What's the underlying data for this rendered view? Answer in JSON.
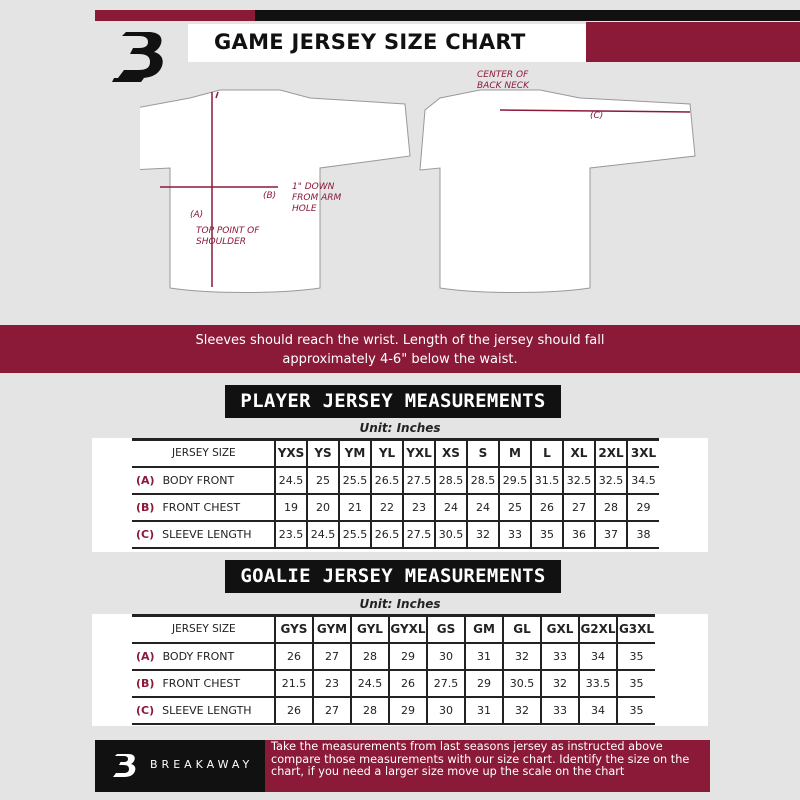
{
  "header": {
    "title": "GAME JERSEY SIZE CHART",
    "logo": "B"
  },
  "diagram": {
    "center_back_neck": "CENTER OF BACK NECK",
    "c_label": "(C)",
    "b_label": "(B)",
    "a_label": "(A)",
    "one_inch_down": "1\" DOWN FROM ARM HOLE",
    "top_point": "TOP POINT OF SHOULDER"
  },
  "banner": {
    "line1": "Sleeves should reach the wrist. Length of the jersey should fall",
    "line2": "approximately 4-6\" below the waist."
  },
  "player": {
    "title": "PLAYER JERSEY MEASUREMENTS",
    "unit": "Unit: Inches",
    "size_label": "JERSEY SIZE",
    "sizes": [
      "YXS",
      "YS",
      "YM",
      "YL",
      "YXL",
      "XS",
      "S",
      "M",
      "L",
      "XL",
      "2XL",
      "3XL"
    ],
    "rows": [
      {
        "id": "(A)",
        "name": "BODY FRONT",
        "values": [
          "24.5",
          "25",
          "25.5",
          "26.5",
          "27.5",
          "28.5",
          "28.5",
          "29.5",
          "31.5",
          "32.5",
          "32.5",
          "34.5"
        ]
      },
      {
        "id": "(B)",
        "name": "FRONT CHEST",
        "values": [
          "19",
          "20",
          "21",
          "22",
          "23",
          "24",
          "24",
          "25",
          "26",
          "27",
          "28",
          "29"
        ]
      },
      {
        "id": "(C)",
        "name": "SLEEVE LENGTH",
        "values": [
          "23.5",
          "24.5",
          "25.5",
          "26.5",
          "27.5",
          "30.5",
          "32",
          "33",
          "35",
          "36",
          "37",
          "38"
        ]
      }
    ]
  },
  "goalie": {
    "title": "GOALIE JERSEY MEASUREMENTS",
    "unit": "Unit: Inches",
    "size_label": "JERSEY SIZE",
    "sizes": [
      "GYS",
      "GYM",
      "GYL",
      "GYXL",
      "GS",
      "GM",
      "GL",
      "GXL",
      "G2XL",
      "G3XL"
    ],
    "rows": [
      {
        "id": "(A)",
        "name": "BODY FRONT",
        "values": [
          "26",
          "27",
          "28",
          "29",
          "30",
          "31",
          "32",
          "33",
          "34",
          "35"
        ]
      },
      {
        "id": "(B)",
        "name": "FRONT CHEST",
        "values": [
          "21.5",
          "23",
          "24.5",
          "26",
          "27.5",
          "29",
          "30.5",
          "32",
          "33.5",
          "35"
        ]
      },
      {
        "id": "(C)",
        "name": "SLEEVE LENGTH",
        "values": [
          "26",
          "27",
          "28",
          "29",
          "30",
          "31",
          "32",
          "33",
          "34",
          "35"
        ]
      }
    ]
  },
  "footer": {
    "brand": "BREAKAWAY",
    "note": "Take the measurements from last seasons jersey as instructed above compare those measurements  with our size chart. Identify the size on the chart, if you need a larger size move up the scale on the chart"
  },
  "colors": {
    "accent": "#8a1a38",
    "dark": "#111111",
    "background": "#e4e4e4"
  }
}
